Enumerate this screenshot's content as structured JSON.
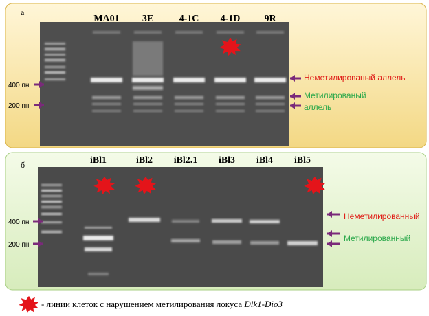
{
  "panel_a": {
    "label": "а",
    "lanes": [
      "MA01",
      "3E",
      "4-1C",
      "4-1D",
      "9R"
    ],
    "markers": [
      "400 пн",
      "200 пн"
    ],
    "annotations": [
      "Неметилированый аллель",
      "Метилированый",
      "аллель"
    ]
  },
  "panel_b": {
    "label": "б",
    "lanes": [
      "iBl1",
      "iBl2",
      "iBl2.1",
      "iBl3",
      "iBl4",
      "iBl5"
    ],
    "markers": [
      "400 пн",
      "200 пн"
    ],
    "annotations": [
      "Неметилированный",
      "Метилированный"
    ]
  },
  "legend": {
    "text": "- линии клеток с нарушением метилирования локуса ",
    "locus": "Dlk1-Dio3"
  }
}
